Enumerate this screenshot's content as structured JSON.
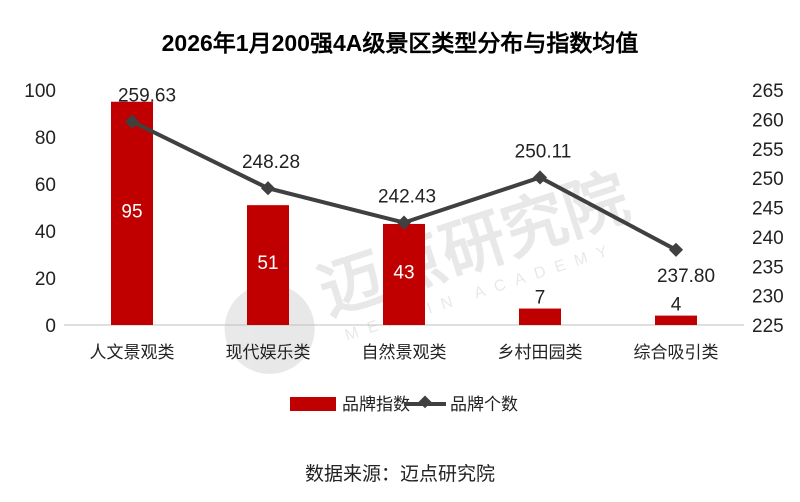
{
  "chart_data": {
    "type": "bar+line",
    "title": "2026年1月200强4A级景区类型分布与指数均值",
    "categories": [
      "人文景观类",
      "现代娱乐类",
      "自然景观类",
      "乡村田园类",
      "综合吸引类"
    ],
    "series": [
      {
        "name": "品牌指数",
        "type": "bar",
        "axis": "left",
        "color": "#C00000",
        "values": [
          95,
          51,
          43,
          7,
          4
        ]
      },
      {
        "name": "品牌个数",
        "type": "line",
        "axis": "right",
        "color": "#404040",
        "values": [
          259.63,
          248.28,
          242.43,
          250.11,
          237.8
        ],
        "labels": [
          "259.63",
          "248.28",
          "242.43",
          "250.11",
          "237.80"
        ]
      }
    ],
    "y_left": {
      "range": [
        0,
        100
      ],
      "ticks": [
        0,
        20,
        40,
        60,
        80,
        100
      ]
    },
    "y_right": {
      "range": [
        225,
        265
      ],
      "ticks": [
        225,
        230,
        235,
        240,
        245,
        250,
        255,
        260,
        265
      ]
    },
    "grid": false,
    "legend": "bottom"
  },
  "source": "数据来源：迈点研究院",
  "watermark": {
    "cn": "迈点研究院",
    "en": "MEADIN ACADEMY"
  }
}
